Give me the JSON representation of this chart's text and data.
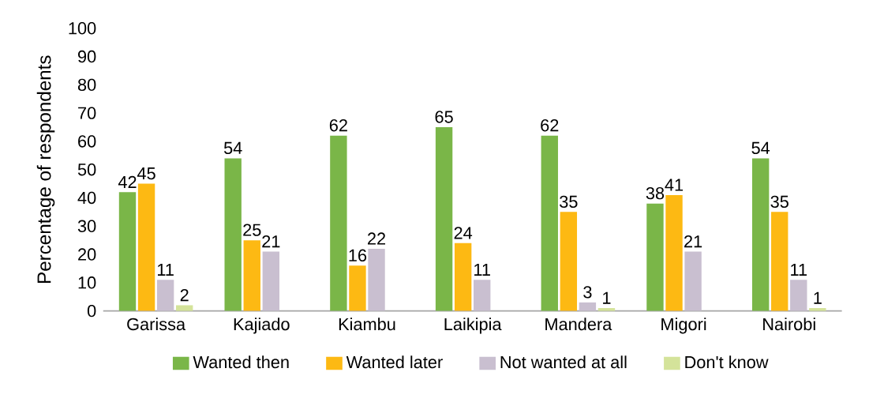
{
  "chart_data": {
    "type": "bar",
    "ylabel": "Percentage of respondents",
    "categories": [
      "Garissa",
      "Kajiado",
      "Kiambu",
      "Laikipia",
      "Mandera",
      "Migori",
      "Nairobi"
    ],
    "series": [
      {
        "name": "Wanted then",
        "color": "#7ab648",
        "values": [
          42,
          54,
          62,
          65,
          62,
          38,
          54
        ]
      },
      {
        "name": "Wanted later",
        "color": "#fdb913",
        "values": [
          45,
          25,
          16,
          24,
          35,
          41,
          35
        ]
      },
      {
        "name": "Not wanted at all",
        "color": "#c9bfd0",
        "values": [
          11,
          21,
          22,
          11,
          3,
          21,
          11
        ]
      },
      {
        "name": "Don't know",
        "color": "#d4e39a",
        "values": [
          2,
          null,
          null,
          null,
          1,
          null,
          1
        ]
      }
    ],
    "ylim": [
      0,
      100
    ],
    "yticks": [
      0,
      10,
      20,
      30,
      40,
      50,
      60,
      70,
      80,
      90,
      100
    ],
    "data_labels": true,
    "legend": "bottom",
    "grid": false
  }
}
